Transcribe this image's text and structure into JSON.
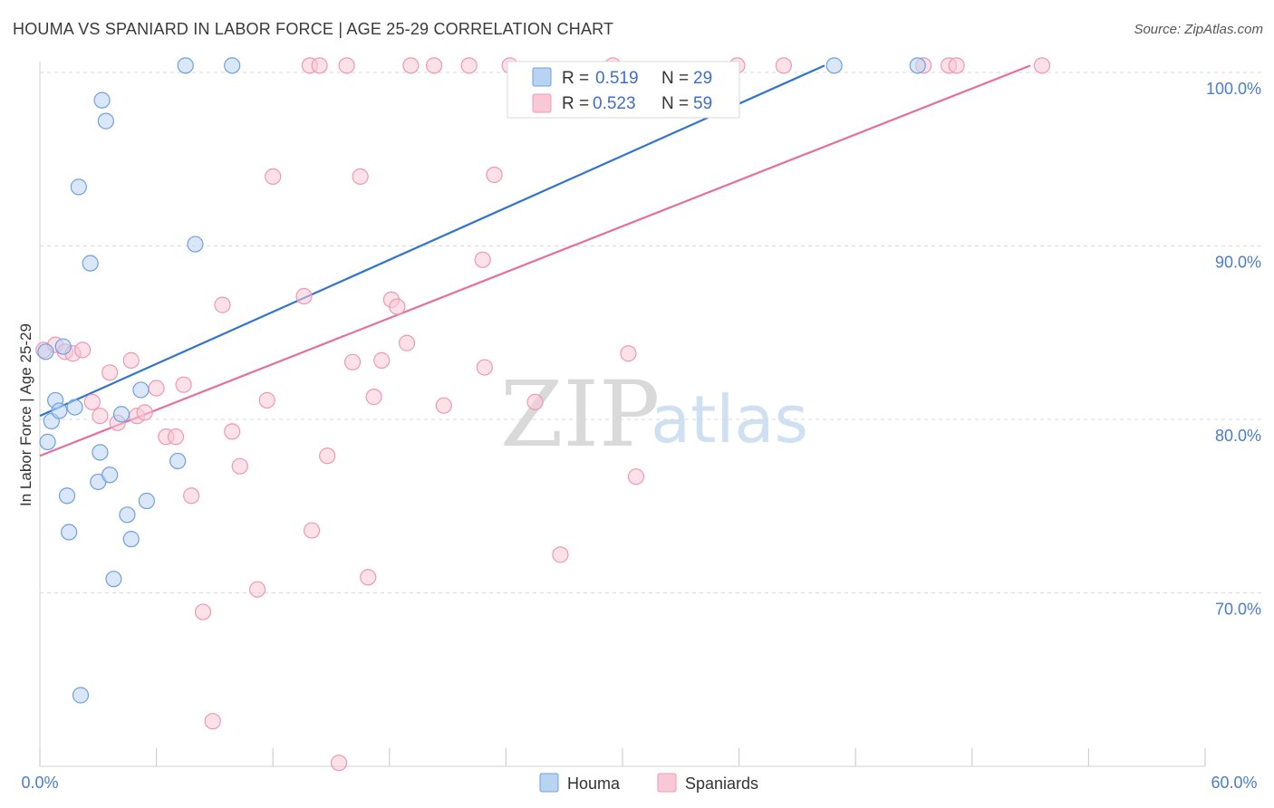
{
  "title": "HOUMA VS SPANIARD IN LABOR FORCE | AGE 25-29 CORRELATION CHART",
  "source": "Source: ZipAtlas.com",
  "watermark": {
    "zip": "ZIP",
    "atlas": "atlas"
  },
  "colors": {
    "houma_fill": "#b9d3f3",
    "houma_stroke": "#6fa0df",
    "houma_line": "#2f74d0",
    "spaniards_fill": "#f9c8d7",
    "spaniards_stroke": "#ee98b4",
    "spaniards_line": "#e56f98",
    "grid": "#d9d9d9",
    "tick_label": "#4a7cc9"
  },
  "legend": {
    "houma": {
      "r_label": "R = ",
      "r_value": "0.519",
      "n_label": "N = ",
      "n_value": "29"
    },
    "spaniards": {
      "r_label": "R = ",
      "r_value": "0.523",
      "n_label": "N = ",
      "n_value": "59"
    }
  },
  "bottom_legend": {
    "houma": "Houma",
    "spaniards": "Spaniards"
  },
  "chart_data": {
    "type": "scatter",
    "title": "HOUMA VS SPANIARD IN LABOR FORCE | AGE 25-29 CORRELATION CHART",
    "xlabel": "",
    "ylabel": "In Labor Force | Age 25-29",
    "xlim": [
      0,
      60
    ],
    "ylim": [
      60,
      100
    ],
    "x_tick_labels": {
      "left": "0.0%",
      "right": "60.0%"
    },
    "y_ticks": [
      {
        "value": 100,
        "label": "100.0%"
      },
      {
        "value": 90,
        "label": "90.0%"
      },
      {
        "value": 80,
        "label": "80.0%"
      },
      {
        "value": 70,
        "label": "70.0%"
      }
    ],
    "series": [
      {
        "name": "Houma",
        "r": 0.519,
        "n": 29,
        "trend": {
          "x0": 0,
          "y0": 80.2,
          "x1": 40.4,
          "y1": 100.4
        },
        "points": [
          [
            0.3,
            83.9
          ],
          [
            0.4,
            78.7
          ],
          [
            0.6,
            79.9
          ],
          [
            0.8,
            81.1
          ],
          [
            1.0,
            80.5
          ],
          [
            1.2,
            84.2
          ],
          [
            1.4,
            75.6
          ],
          [
            1.5,
            73.5
          ],
          [
            1.8,
            80.7
          ],
          [
            2.0,
            93.4
          ],
          [
            2.1,
            64.1
          ],
          [
            2.6,
            89.0
          ],
          [
            3.0,
            76.4
          ],
          [
            3.1,
            78.1
          ],
          [
            3.2,
            98.4
          ],
          [
            3.4,
            97.2
          ],
          [
            3.6,
            76.8
          ],
          [
            3.8,
            70.8
          ],
          [
            4.2,
            80.3
          ],
          [
            4.5,
            74.5
          ],
          [
            4.7,
            73.1
          ],
          [
            5.2,
            81.7
          ],
          [
            5.5,
            75.3
          ],
          [
            7.1,
            77.6
          ],
          [
            7.5,
            100.4
          ],
          [
            8.0,
            90.1
          ],
          [
            9.9,
            100.4
          ],
          [
            40.9,
            100.4
          ],
          [
            45.2,
            100.4
          ]
        ]
      },
      {
        "name": "Spaniards",
        "r": 0.523,
        "n": 59,
        "trend": {
          "x0": 0,
          "y0": 77.9,
          "x1": 51.0,
          "y1": 100.4
        },
        "points": [
          [
            0.2,
            84.0
          ],
          [
            0.8,
            84.3
          ],
          [
            1.3,
            83.9
          ],
          [
            1.7,
            83.8
          ],
          [
            2.2,
            84.0
          ],
          [
            2.7,
            81.0
          ],
          [
            3.1,
            80.2
          ],
          [
            3.6,
            82.7
          ],
          [
            4.0,
            79.8
          ],
          [
            4.7,
            83.4
          ],
          [
            5.0,
            80.2
          ],
          [
            5.4,
            80.4
          ],
          [
            6.0,
            81.8
          ],
          [
            6.5,
            79.0
          ],
          [
            7.0,
            79.0
          ],
          [
            7.4,
            82.0
          ],
          [
            7.8,
            75.6
          ],
          [
            8.4,
            68.9
          ],
          [
            8.9,
            62.6
          ],
          [
            9.4,
            86.6
          ],
          [
            9.9,
            79.3
          ],
          [
            10.3,
            77.3
          ],
          [
            11.2,
            70.2
          ],
          [
            11.7,
            81.1
          ],
          [
            12.0,
            94.0
          ],
          [
            13.6,
            87.1
          ],
          [
            13.9,
            100.4
          ],
          [
            14.0,
            73.6
          ],
          [
            14.4,
            100.4
          ],
          [
            14.8,
            77.9
          ],
          [
            15.4,
            60.2
          ],
          [
            15.8,
            100.4
          ],
          [
            16.1,
            83.3
          ],
          [
            16.5,
            94.0
          ],
          [
            16.9,
            70.9
          ],
          [
            17.2,
            81.3
          ],
          [
            17.6,
            83.4
          ],
          [
            18.1,
            86.9
          ],
          [
            18.4,
            86.5
          ],
          [
            18.9,
            84.4
          ],
          [
            19.1,
            100.4
          ],
          [
            20.3,
            100.4
          ],
          [
            20.8,
            80.8
          ],
          [
            22.1,
            100.4
          ],
          [
            22.8,
            89.2
          ],
          [
            22.9,
            83.0
          ],
          [
            23.4,
            94.1
          ],
          [
            24.2,
            100.4
          ],
          [
            25.5,
            81.0
          ],
          [
            26.8,
            72.2
          ],
          [
            29.5,
            100.4
          ],
          [
            30.3,
            83.8
          ],
          [
            30.7,
            76.7
          ],
          [
            35.9,
            100.4
          ],
          [
            38.3,
            100.4
          ],
          [
            45.5,
            100.4
          ],
          [
            46.8,
            100.4
          ],
          [
            47.2,
            100.4
          ],
          [
            51.6,
            100.4
          ]
        ]
      }
    ]
  }
}
